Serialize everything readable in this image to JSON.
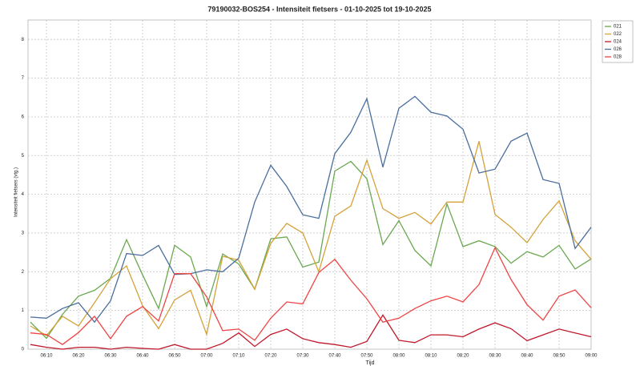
{
  "chart_data": {
    "type": "line",
    "title": "79190032-BOS254 - Intensiteit fietsers - 01-10-2025 tot 19-10-2025",
    "x_label": "Tijd",
    "y_label": "Intensiteit fietsers (vtg.)",
    "x": [
      "06:05",
      "06:10",
      "06:15",
      "06:20",
      "06:25",
      "06:30",
      "06:35",
      "06:40",
      "06:45",
      "06:50",
      "06:55",
      "07:00",
      "07:05",
      "07:10",
      "07:15",
      "07:20",
      "07:25",
      "07:30",
      "07:35",
      "07:40",
      "07:45",
      "07:50",
      "07:55",
      "08:00",
      "08:05",
      "08:10",
      "08:15",
      "08:20",
      "08:25",
      "08:30",
      "08:35",
      "08:40",
      "08:45",
      "08:50",
      "08:55",
      "09:00"
    ],
    "series": [
      {
        "name": "021",
        "color": "#6aa84f",
        "values": [
          0.7,
          0.28,
          0.9,
          1.37,
          1.52,
          1.83,
          2.83,
          1.92,
          1.05,
          2.68,
          2.38,
          1.1,
          2.46,
          2.2,
          1.55,
          2.85,
          2.9,
          2.12,
          2.25,
          4.6,
          4.85,
          4.4,
          2.7,
          3.32,
          2.55,
          2.15,
          3.75,
          2.65,
          2.8,
          2.65,
          2.22,
          2.52,
          2.38,
          2.68,
          2.07,
          2.33
        ]
      },
      {
        "name": "022",
        "color": "#d4a23a",
        "values": [
          0.6,
          0.35,
          0.85,
          0.6,
          1.2,
          1.82,
          2.15,
          1.12,
          0.53,
          1.27,
          1.52,
          0.38,
          2.4,
          2.3,
          1.55,
          2.73,
          3.25,
          3.0,
          2.0,
          3.43,
          3.7,
          4.88,
          3.63,
          3.38,
          3.53,
          3.23,
          3.8,
          3.8,
          5.37,
          3.48,
          3.15,
          2.75,
          3.35,
          3.83,
          2.8,
          2.32
        ]
      },
      {
        "name": "024",
        "color": "#c0182a",
        "values": [
          0.12,
          0.05,
          0.0,
          0.05,
          0.05,
          0.0,
          0.05,
          0.02,
          0.0,
          0.12,
          0.0,
          0.0,
          0.15,
          0.42,
          0.07,
          0.38,
          0.52,
          0.27,
          0.17,
          0.12,
          0.05,
          0.2,
          0.88,
          0.23,
          0.17,
          0.37,
          0.37,
          0.32,
          0.52,
          0.68,
          0.53,
          0.22,
          0.37,
          0.52,
          0.42,
          0.32
        ]
      },
      {
        "name": "026",
        "color": "#4a6e9e",
        "values": [
          0.83,
          0.8,
          1.05,
          1.2,
          0.7,
          1.25,
          2.47,
          2.42,
          2.68,
          1.93,
          1.95,
          2.05,
          2.0,
          2.35,
          3.8,
          4.75,
          4.2,
          3.47,
          3.38,
          5.05,
          5.6,
          6.47,
          4.7,
          6.22,
          6.53,
          6.12,
          6.02,
          5.68,
          4.55,
          4.65,
          5.37,
          5.58,
          4.38,
          4.28,
          2.6,
          3.15
        ]
      },
      {
        "name": "028",
        "color": "#ee4444",
        "values": [
          0.42,
          0.38,
          0.12,
          0.43,
          0.85,
          0.27,
          0.85,
          1.1,
          0.73,
          1.95,
          1.95,
          1.35,
          0.48,
          0.52,
          0.23,
          0.8,
          1.22,
          1.17,
          1.98,
          2.32,
          1.78,
          1.3,
          0.7,
          0.8,
          1.05,
          1.25,
          1.37,
          1.22,
          1.67,
          2.62,
          1.8,
          1.15,
          0.75,
          1.37,
          1.53,
          1.07
        ]
      }
    ],
    "xlim": [
      "06:05",
      "09:00"
    ],
    "xticks": [
      "06:10",
      "06:20",
      "06:30",
      "06:40",
      "06:50",
      "07:00",
      "07:10",
      "07:20",
      "07:30",
      "07:40",
      "07:50",
      "08:00",
      "08:10",
      "08:20",
      "08:30",
      "08:40",
      "08:50",
      "09:00"
    ],
    "ylim": [
      0,
      8.5
    ],
    "yticks": [
      0,
      1,
      2,
      3,
      4,
      5,
      6,
      7,
      8
    ],
    "grid": true
  }
}
